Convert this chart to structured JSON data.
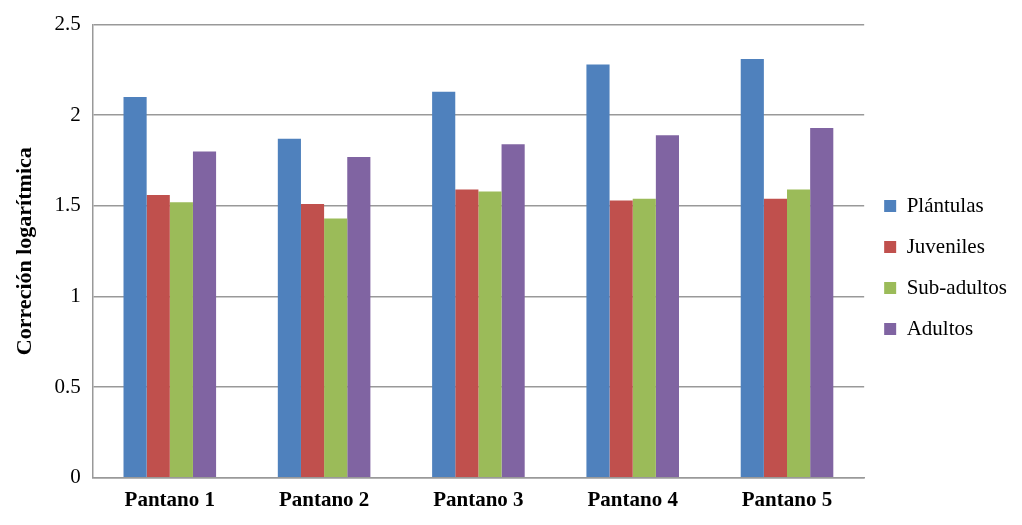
{
  "chart_data": {
    "type": "bar",
    "ylabel": "Correción logarítmica",
    "categories": [
      "Pantano 1",
      "Pantano 2",
      "Pantano 3",
      "Pantano 4",
      "Pantano 5"
    ],
    "series": [
      {
        "name": "Plántulas",
        "color": "#4f81bd",
        "values": [
          2.1,
          1.87,
          2.13,
          2.28,
          2.31
        ]
      },
      {
        "name": "Juveniles",
        "color": "#c0504d",
        "values": [
          1.56,
          1.51,
          1.59,
          1.53,
          1.54
        ]
      },
      {
        "name": "Sub-adultos",
        "color": "#9bbb59",
        "values": [
          1.52,
          1.43,
          1.58,
          1.54,
          1.59
        ]
      },
      {
        "name": "Adultos",
        "color": "#8064a2",
        "values": [
          1.8,
          1.77,
          1.84,
          1.89,
          1.93
        ]
      }
    ],
    "ylim": [
      0,
      2.5
    ],
    "yticks": [
      0,
      0.5,
      1,
      1.5,
      2,
      2.5
    ],
    "grid": "y",
    "legend": "right"
  }
}
